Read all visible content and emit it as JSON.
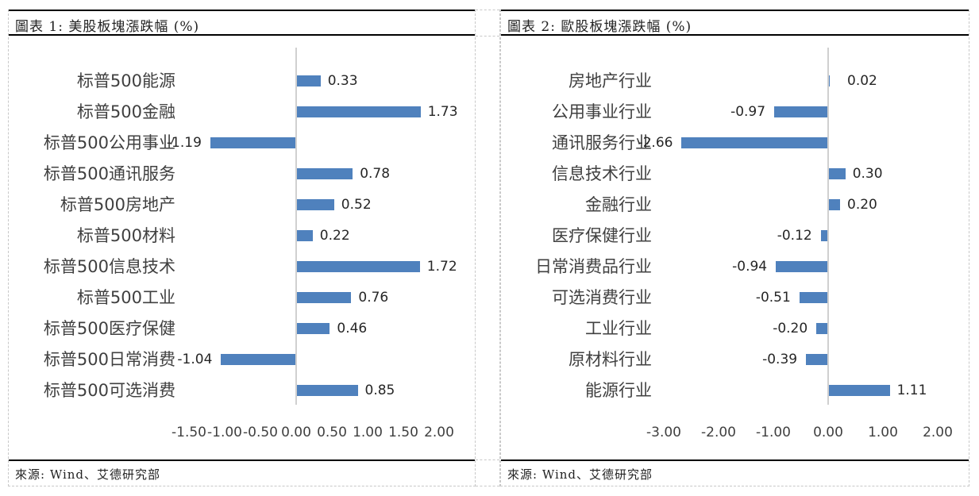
{
  "panels": [
    {
      "title": "圖表 1: 美股板塊漲跌幅 (%)",
      "source": "來源: Wind、艾德研究部"
    },
    {
      "title": "圖表 2: 歐股板塊漲跌幅 (%)",
      "source": "來源: Wind、艾德研究部"
    }
  ],
  "chart_data": [
    {
      "type": "bar",
      "orientation": "horizontal",
      "title": "圖表 1: 美股板塊漲跌幅 (%)",
      "categories": [
        "标普500能源",
        "标普500金融",
        "标普500公用事业",
        "标普500通讯服务",
        "标普500房地产",
        "标普500材料",
        "标普500信息技术",
        "标普500工业",
        "标普500医疗保健",
        "标普500日常消费",
        "标普500可选消费"
      ],
      "values": [
        0.33,
        1.73,
        -1.19,
        0.78,
        0.52,
        0.22,
        1.72,
        0.76,
        0.46,
        -1.04,
        0.85
      ],
      "value_labels": [
        "0.33",
        "1.73",
        "-1.19",
        "0.78",
        "0.52",
        "0.22",
        "1.72",
        "0.76",
        "0.46",
        "-1.04",
        "0.85"
      ],
      "xlabel": "",
      "ylabel": "",
      "xlim": [
        -1.5,
        2.0
      ],
      "x_ticks": [
        "-1.50",
        "-1.00",
        "-0.50",
        "0.00",
        "0.50",
        "1.00",
        "1.50",
        "2.00"
      ],
      "grid": false,
      "legend": null,
      "bar_color": "#4f81bd"
    },
    {
      "type": "bar",
      "orientation": "horizontal",
      "title": "圖表 2: 歐股板塊漲跌幅 (%)",
      "categories": [
        "房地产行业",
        "公用事业行业",
        "通讯服务行业",
        "信息技术行业",
        "金融行业",
        "医疗保健行业",
        "日常消费品行业",
        "可选消费行业",
        "工业行业",
        "原材料行业",
        "能源行业"
      ],
      "values": [
        0.02,
        -0.97,
        -2.66,
        0.3,
        0.2,
        -0.12,
        -0.94,
        -0.51,
        -0.2,
        -0.39,
        1.11
      ],
      "value_labels": [
        "0.02",
        "-0.97",
        "-2.66",
        "0.30",
        "0.20",
        "-0.12",
        "-0.94",
        "-0.51",
        "-0.20",
        "-0.39",
        "1.11"
      ],
      "xlabel": "",
      "ylabel": "",
      "xlim": [
        -3.0,
        2.0
      ],
      "x_ticks": [
        "-3.00",
        "-2.00",
        "-1.00",
        "0.00",
        "1.00",
        "2.00"
      ],
      "grid": false,
      "legend": null,
      "bar_color": "#4f81bd"
    }
  ]
}
